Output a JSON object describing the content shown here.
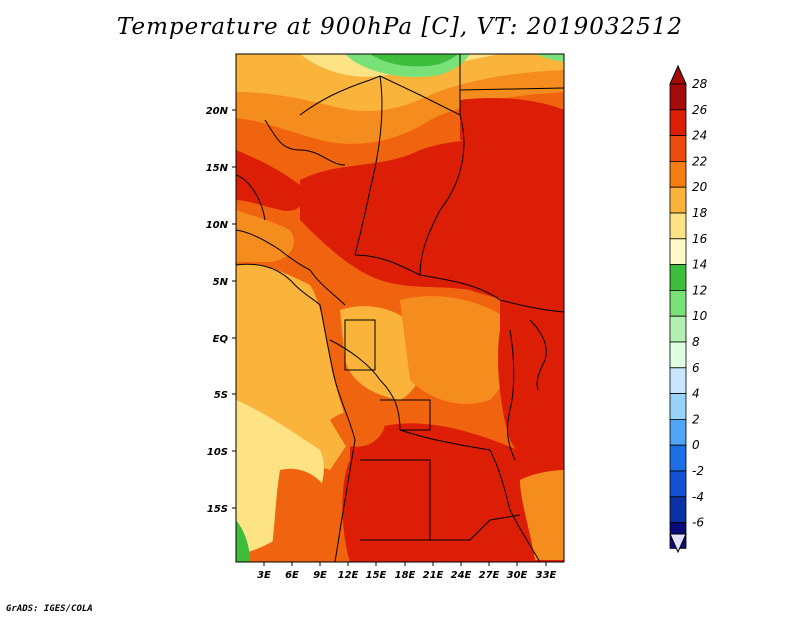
{
  "title": "Temperature at 900hPa [C], VT: 2019032512",
  "credit": "GrADS: IGES/COLA",
  "lat_labels": [
    "20N",
    "15N",
    "10N",
    "5N",
    "EQ",
    "5S",
    "10S",
    "15S"
  ],
  "lon_labels": [
    "3E",
    "6E",
    "9E",
    "12E",
    "15E",
    "18E",
    "21E",
    "24E",
    "27E",
    "30E",
    "33E"
  ],
  "colorbar": {
    "labels": [
      "28",
      "26",
      "24",
      "22",
      "20",
      "18",
      "16",
      "14",
      "12",
      "10",
      "8",
      "6",
      "4",
      "2",
      "0",
      "-2",
      "-4",
      "-6"
    ],
    "colors": [
      "#a50a0a",
      "#dc1e06",
      "#eb4b0c",
      "#f57d14",
      "#fab43c",
      "#fde384",
      "#fffac8",
      "#3cbe3c",
      "#78e178",
      "#b4f0b4",
      "#e1ffe1",
      "#c8e6ff",
      "#96d2fa",
      "#50a5f5",
      "#1e6ee6",
      "#1450d2",
      "#0a32a5",
      "#0a0a78"
    ],
    "top_arrow_color": "#a50a0a",
    "bottom_arrow_color": "#e1e1ff"
  },
  "field_palette": {
    "t28": "#dc1e06",
    "t26": "#e63c0a",
    "t24": "#f0640f",
    "t22": "#f58c1e",
    "t20": "#fab43c",
    "t18": "#fde384",
    "t16": "#fffac8",
    "t14": "#3cbe3c",
    "t12": "#78e178"
  }
}
